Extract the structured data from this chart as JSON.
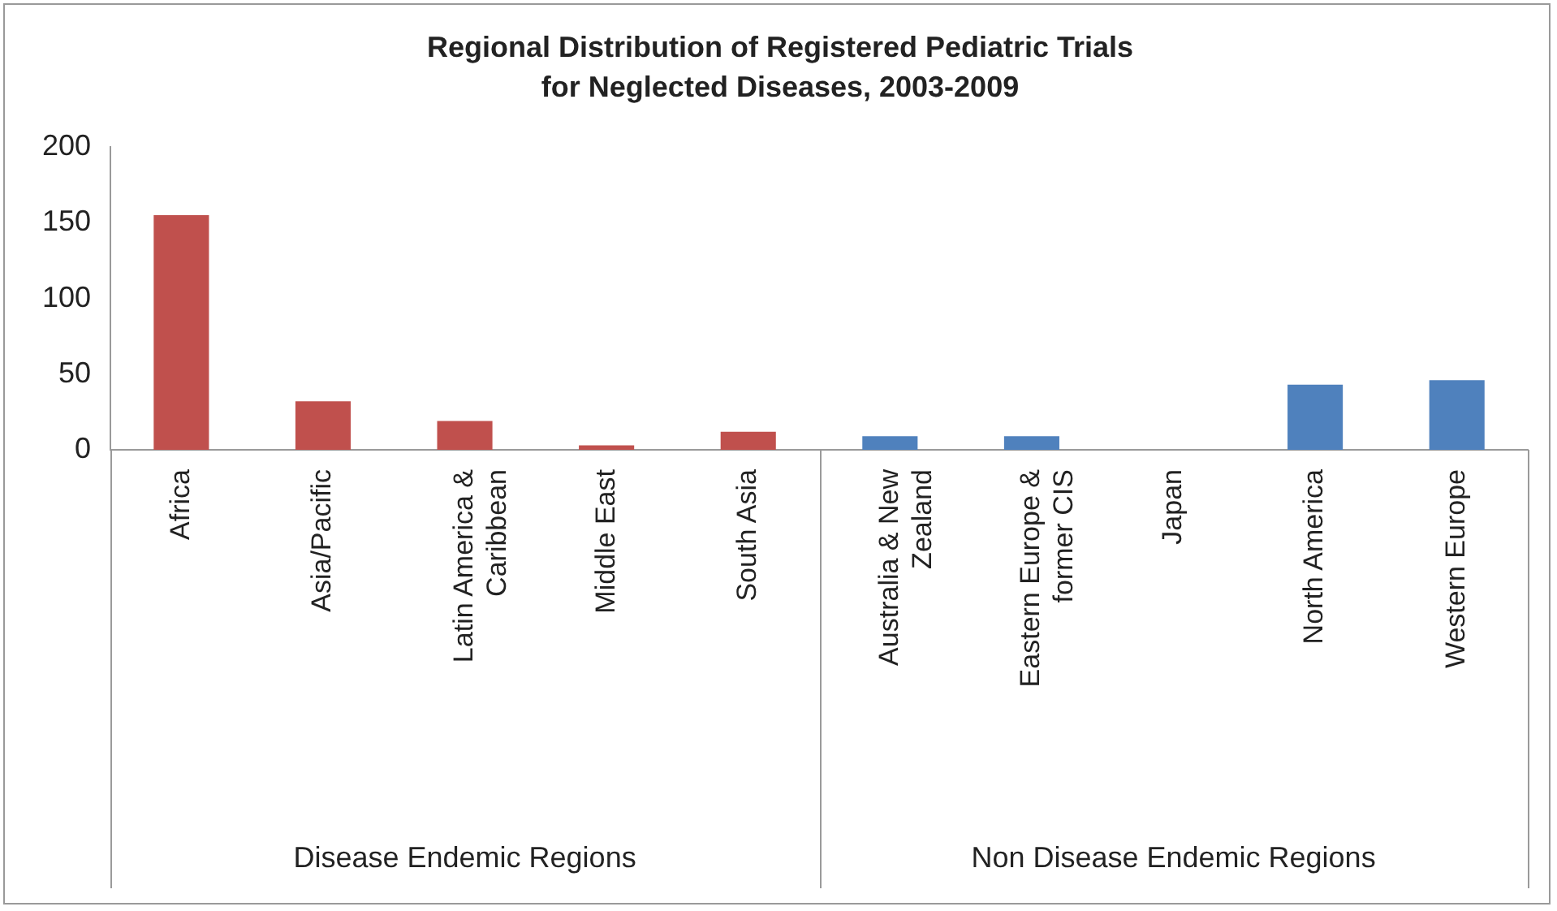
{
  "chart_data": {
    "type": "bar",
    "title": "Regional Distribution of Registered Pediatric Trials for Neglected Diseases, 2003-2009",
    "categories": [
      "Africa",
      "Asia/Pacific",
      "Latin America & Caribbean",
      "Middle East",
      "South Asia",
      "Australia & New Zealand",
      "Eastern Europe & former CIS",
      "Japan",
      "North America",
      "Western Europe"
    ],
    "series": [
      {
        "color": "#c0504d",
        "values": [
          155,
          32,
          19,
          3,
          12,
          null,
          null,
          null,
          null,
          null
        ]
      },
      {
        "color": "#4f81bd",
        "values": [
          null,
          null,
          null,
          null,
          null,
          9,
          9,
          0,
          43,
          46
        ]
      }
    ],
    "annotations": [
      "Disease Endemic Regions",
      "Non Disease Endemic Regions"
    ],
    "ylim": [
      0,
      200
    ],
    "yticks": [
      0,
      50,
      100,
      150,
      200
    ],
    "grid": false,
    "legend": false
  }
}
